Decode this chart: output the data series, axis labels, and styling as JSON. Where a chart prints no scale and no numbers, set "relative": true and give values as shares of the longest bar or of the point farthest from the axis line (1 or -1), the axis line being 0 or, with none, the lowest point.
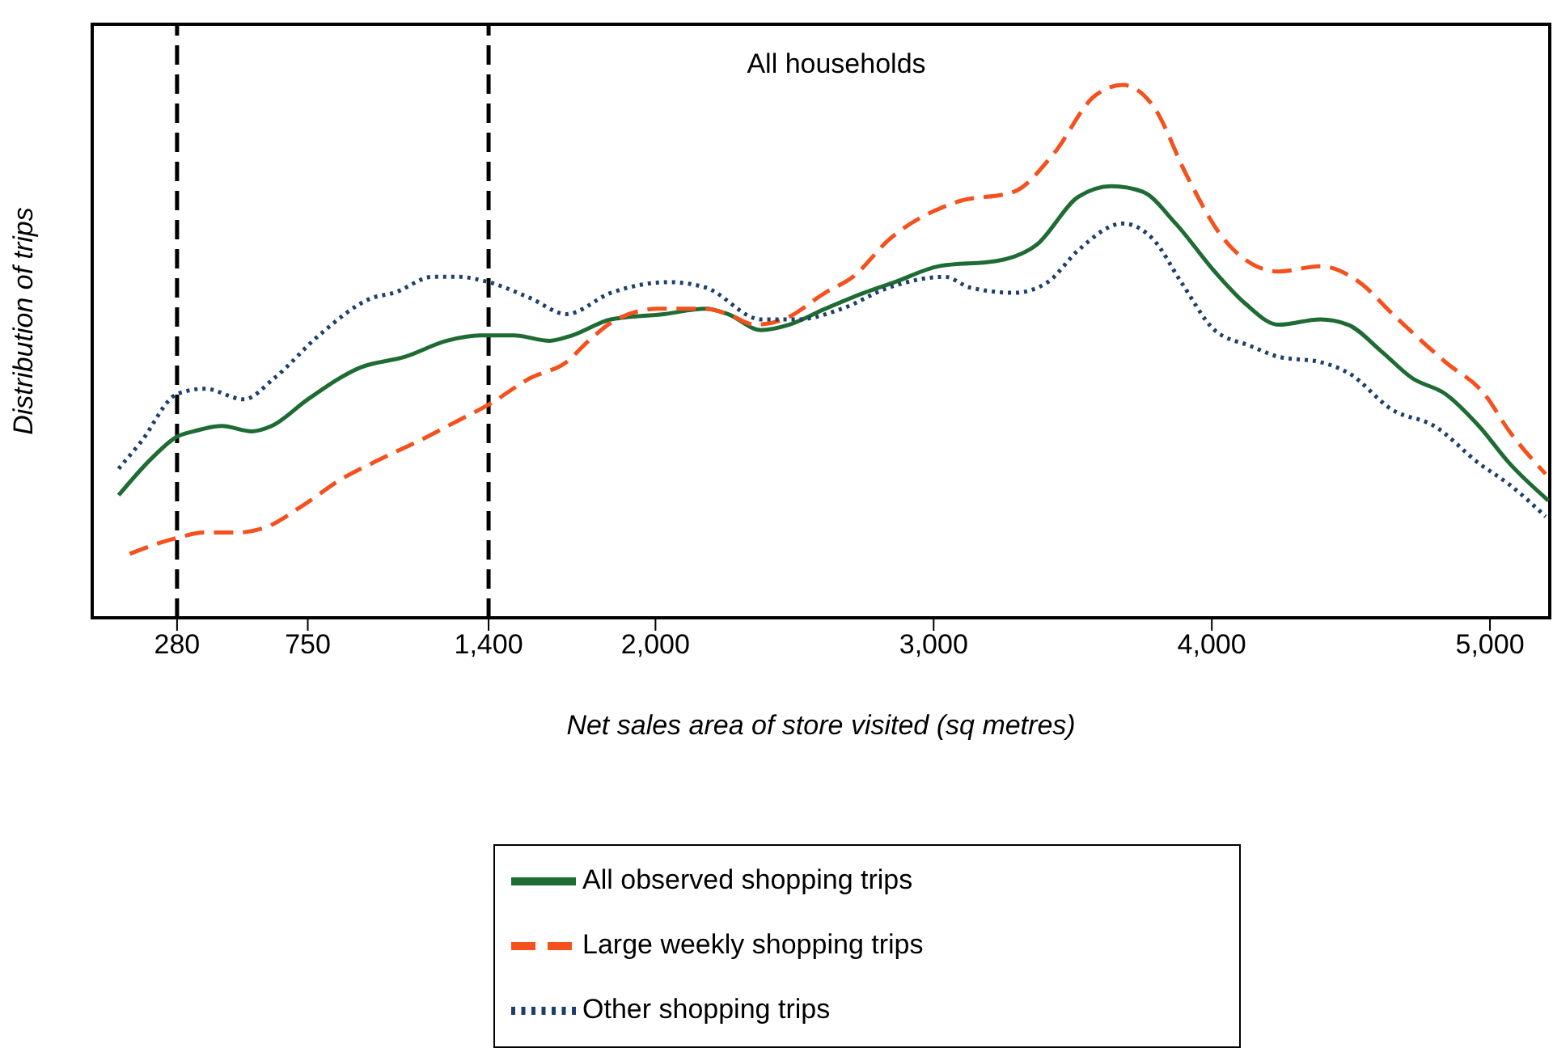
{
  "chart_data": {
    "type": "line",
    "relative": true,
    "xlabel": "Net sales area of store visited (sq metres)",
    "ylabel": "Distribution of trips",
    "annotations": [
      "All households"
    ],
    "xlim": [
      -25,
      5215
    ],
    "xticks": [
      280,
      750,
      {
        "value": 1400,
        "label": "1,400"
      },
      {
        "value": 2000,
        "label": "2,000"
      },
      {
        "value": 3000,
        "label": "3,000"
      },
      {
        "value": 4000,
        "label": "4,000"
      },
      {
        "value": 5000,
        "label": "5,000"
      }
    ],
    "legend": "bottom",
    "marker": "none",
    "ref_lines": [
      {
        "axis": "x",
        "value": 280,
        "color": "#000000",
        "line_style": "dashed"
      },
      {
        "axis": "x",
        "value": 1400,
        "color": "#000000",
        "line_style": "dashed"
      }
    ],
    "series": [
      {
        "name": "All observed shopping trips",
        "color": "#1e6b34",
        "line_style": "solid",
        "x": [
          70,
          190,
          280,
          340,
          440,
          550,
          620,
          750,
          940,
          1100,
          1250,
          1370,
          1490,
          1620,
          1700,
          1840,
          2030,
          2180,
          2260,
          2380,
          2480,
          2610,
          2750,
          2860,
          3020,
          3230,
          3370,
          3520,
          3640,
          3750,
          3870,
          4010,
          4120,
          4240,
          4390,
          4490,
          4610,
          4720,
          4840,
          4960,
          5070,
          5210
        ],
        "values": [
          0.23,
          0.3,
          0.34,
          0.35,
          0.36,
          0.35,
          0.36,
          0.41,
          0.47,
          0.49,
          0.52,
          0.53,
          0.53,
          0.52,
          0.53,
          0.56,
          0.57,
          0.58,
          0.57,
          0.54,
          0.55,
          0.58,
          0.61,
          0.63,
          0.66,
          0.67,
          0.7,
          0.79,
          0.81,
          0.8,
          0.74,
          0.65,
          0.59,
          0.55,
          0.56,
          0.55,
          0.5,
          0.45,
          0.42,
          0.36,
          0.29,
          0.22
        ]
      },
      {
        "name": "Large weekly shopping trips",
        "color": "#f4511e",
        "line_style": "dashed",
        "x": [
          110,
          280,
          380,
          500,
          600,
          730,
          870,
          1020,
          1180,
          1290,
          1400,
          1550,
          1680,
          1760,
          1860,
          2010,
          2180,
          2260,
          2360,
          2460,
          2610,
          2710,
          2840,
          3080,
          3290,
          3430,
          3580,
          3680,
          3790,
          3910,
          4030,
          4160,
          4240,
          4390,
          4530,
          4650,
          4840,
          4980,
          5070,
          5200
        ],
        "values": [
          0.12,
          0.15,
          0.16,
          0.16,
          0.17,
          0.21,
          0.26,
          0.3,
          0.34,
          0.37,
          0.4,
          0.45,
          0.48,
          0.52,
          0.56,
          0.58,
          0.58,
          0.57,
          0.55,
          0.56,
          0.61,
          0.64,
          0.71,
          0.78,
          0.8,
          0.87,
          0.98,
          1.0,
          0.96,
          0.83,
          0.72,
          0.66,
          0.65,
          0.66,
          0.63,
          0.57,
          0.48,
          0.42,
          0.35,
          0.27
        ]
      },
      {
        "name": "Other shopping trips",
        "color": "#1f3f6b",
        "line_style": "dotted",
        "x": [
          70,
          150,
          280,
          380,
          520,
          630,
          790,
          980,
          1060,
          1200,
          1290,
          1400,
          1550,
          1680,
          1840,
          2050,
          2180,
          2380,
          2510,
          2670,
          2840,
          3040,
          3130,
          3290,
          3410,
          3520,
          3680,
          3790,
          3890,
          4010,
          4140,
          4240,
          4390,
          4490,
          4650,
          4800,
          4960,
          5070,
          5200
        ],
        "values": [
          0.28,
          0.33,
          0.42,
          0.43,
          0.41,
          0.45,
          0.53,
          0.6,
          0.61,
          0.64,
          0.64,
          0.63,
          0.6,
          0.57,
          0.61,
          0.63,
          0.62,
          0.56,
          0.56,
          0.58,
          0.62,
          0.64,
          0.62,
          0.61,
          0.63,
          0.69,
          0.74,
          0.71,
          0.63,
          0.54,
          0.51,
          0.49,
          0.48,
          0.46,
          0.39,
          0.36,
          0.29,
          0.25,
          0.19
        ]
      }
    ]
  }
}
